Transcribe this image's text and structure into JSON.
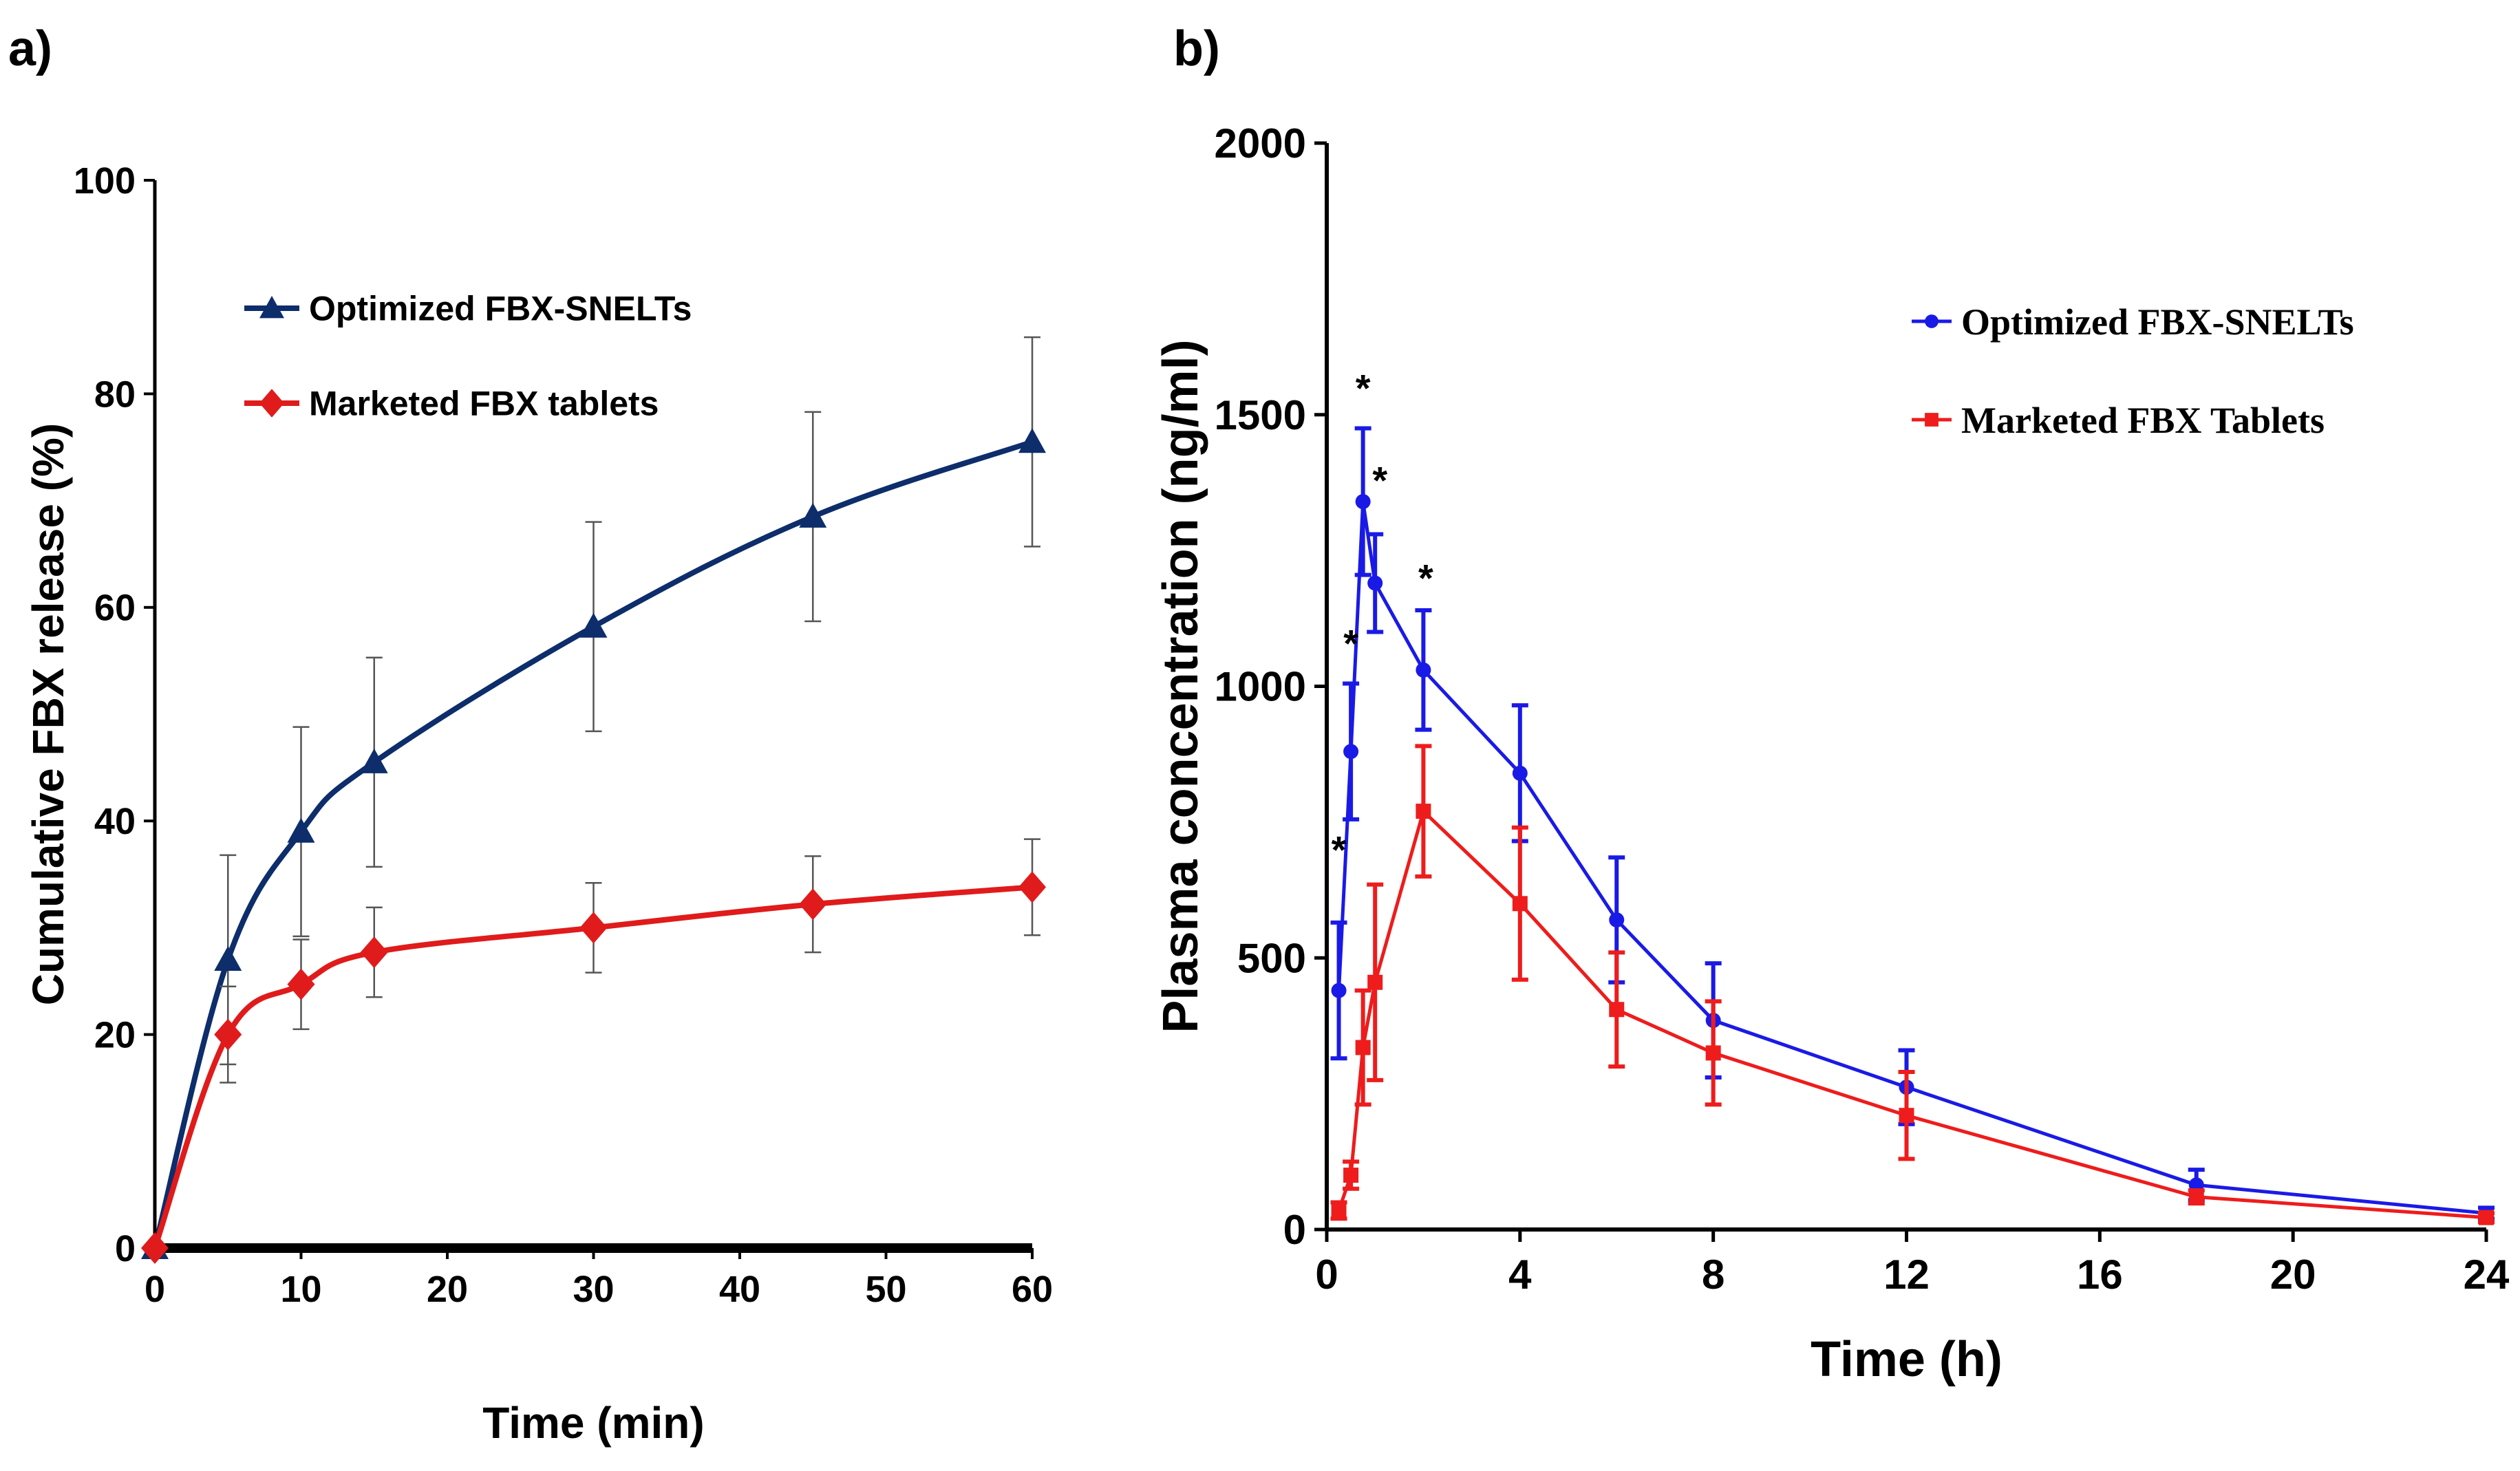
{
  "chart_data": [
    {
      "panel": "a)",
      "type": "line",
      "title": "",
      "xlabel": "Time (min)",
      "ylabel": "Cumulative FBX release (%)",
      "xlim": [
        0,
        60
      ],
      "ylim": [
        0,
        100
      ],
      "xticks": [
        0,
        10,
        20,
        30,
        40,
        50,
        60
      ],
      "yticks": [
        0,
        20,
        40,
        60,
        80,
        100
      ],
      "grid": false,
      "legend_position": "top-left",
      "series": [
        {
          "name": "Optimized FBX-SNELTs",
          "color": "#0d2d6b",
          "marker": "triangle",
          "x": [
            0,
            5,
            10,
            15,
            30,
            45,
            60
          ],
          "y": [
            0,
            27,
            39,
            45.5,
            58.2,
            68.5,
            75.5
          ],
          "err": [
            0,
            9.8,
            9.8,
            9.8,
            9.8,
            9.8,
            9.8
          ]
        },
        {
          "name": "Marketed FBX tablets",
          "color": "#e01b1b",
          "marker": "diamond",
          "x": [
            0,
            5,
            10,
            15,
            30,
            45,
            60
          ],
          "y": [
            0,
            20,
            24.7,
            27.7,
            30,
            32.2,
            33.8
          ],
          "err": [
            0,
            4.5,
            4.2,
            4.2,
            4.2,
            4.5,
            4.5
          ]
        }
      ]
    },
    {
      "panel": "b)",
      "type": "line",
      "title": "",
      "xlabel": "Time (h)",
      "ylabel": "Plasma concentration (ng/ml)",
      "xlim": [
        0,
        24
      ],
      "ylim": [
        0,
        2000
      ],
      "xticks": [
        0,
        4,
        8,
        12,
        16,
        20,
        24
      ],
      "yticks": [
        0,
        500,
        1000,
        1500,
        2000
      ],
      "grid": false,
      "legend_position": "top-right",
      "series": [
        {
          "name": "Optimized FBX-SNELTs",
          "color": "#1a1ae6",
          "marker": "circle",
          "x": [
            0.25,
            0.5,
            0.75,
            1,
            2,
            4,
            6,
            8,
            12,
            18,
            24
          ],
          "y": [
            440,
            880,
            1340,
            1190,
            1030,
            840,
            570,
            385,
            262,
            82,
            30
          ],
          "err": [
            125,
            125,
            135,
            90,
            110,
            125,
            115,
            105,
            68,
            28,
            10
          ]
        },
        {
          "name": "Marketed FBX Tablets",
          "color": "#ee1c1c",
          "marker": "square",
          "x": [
            0.25,
            0.5,
            0.75,
            1,
            2,
            4,
            6,
            8,
            12,
            18,
            24
          ],
          "y": [
            35,
            100,
            335,
            455,
            770,
            600,
            405,
            325,
            210,
            60,
            22
          ],
          "err": [
            15,
            25,
            105,
            180,
            120,
            140,
            105,
            95,
            80,
            12,
            8
          ]
        }
      ],
      "annotations": [
        {
          "text": "*",
          "x": 0.25,
          "y": 700
        },
        {
          "text": "*",
          "x": 0.5,
          "y": 1080
        },
        {
          "text": "*",
          "x": 0.75,
          "y": 1550
        },
        {
          "text": "*",
          "x": 1.1,
          "y": 1380
        },
        {
          "text": "*",
          "x": 2.05,
          "y": 1200
        }
      ]
    }
  ]
}
